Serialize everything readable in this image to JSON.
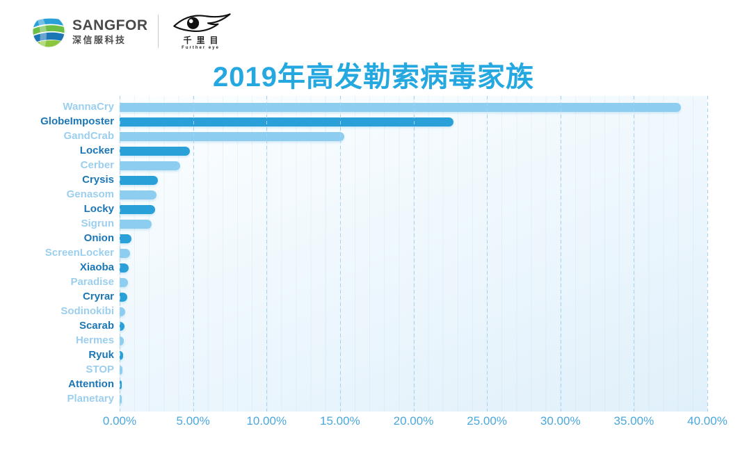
{
  "header": {
    "brand_name": "SANGFOR",
    "brand_cn": "深信服科技",
    "eye_cn": "千里目",
    "eye_en": "Further eye"
  },
  "title": "2019年高发勒索病毒家族",
  "colors": {
    "title": "#25a7e0",
    "bar_light": "#8dcdf0",
    "bar_dark": "#29a0d8",
    "label_light": "#9ccfed",
    "label_dark": "#1b76b5",
    "gridline": "#a5d2ee",
    "tick_label": "#4aa8de"
  },
  "chart_data": {
    "type": "bar",
    "orientation": "horizontal",
    "title": "2019年高发勒索病毒家族",
    "xlabel": "",
    "ylabel": "",
    "xlim": [
      0,
      40
    ],
    "x_tick_step": 5,
    "x_ticks": [
      "0.00%",
      "5.00%",
      "10.00%",
      "15.00%",
      "20.00%",
      "25.00%",
      "30.00%",
      "35.00%",
      "40.00%"
    ],
    "grid": "dashed-vertical-major, faint-minor-every-1pct",
    "legend": "none",
    "categories": [
      "WannaCry",
      "GlobeImposter",
      "GandCrab",
      "Locker",
      "Cerber",
      "Crysis",
      "Genasom",
      "Locky",
      "Sigrun",
      "Onion",
      "ScreenLocker",
      "Xiaoba",
      "Paradise",
      "Cryrar",
      "Sodinokibi",
      "Scarab",
      "Hermes",
      "Ryuk",
      "STOP",
      "Attention",
      "Planetary"
    ],
    "values": [
      38.2,
      22.7,
      15.3,
      4.8,
      4.1,
      2.6,
      2.5,
      2.4,
      2.2,
      0.8,
      0.7,
      0.62,
      0.55,
      0.5,
      0.4,
      0.35,
      0.3,
      0.25,
      0.2,
      0.15,
      0.08
    ],
    "unit": "%",
    "style_note": "rows alternate light/dark blue, labels colored to match their bar"
  }
}
